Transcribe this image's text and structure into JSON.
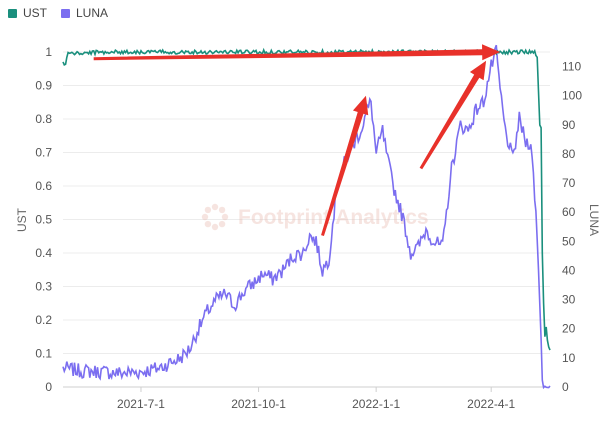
{
  "chart_data": {
    "type": "line",
    "legend": [
      {
        "name": "UST",
        "color": "#1a8f7d"
      },
      {
        "name": "LUNA",
        "color": "#7b6ef0"
      }
    ],
    "ylabel_left": "UST",
    "ylabel_right": "LUNA",
    "watermark": "Footprint Analytics",
    "x_ticks": [
      "2021-7-1",
      "2021-10-1",
      "2022-1-1",
      "2022-4-1"
    ],
    "x_range": [
      "2021-05-01",
      "2022-05-17"
    ],
    "y_left_ticks": [
      0,
      0.1,
      0.2,
      0.3,
      0.4,
      0.5,
      0.6,
      0.7,
      0.8,
      0.9,
      1
    ],
    "y_left_range": [
      0,
      1
    ],
    "y_right_ticks": [
      0,
      10,
      20,
      30,
      40,
      50,
      60,
      70,
      80,
      90,
      100,
      110
    ],
    "y_right_range": [
      0,
      115
    ],
    "grid": "horizontal",
    "legend_placement": "top-left",
    "series": [
      {
        "name": "UST",
        "axis": "left",
        "color": "#1a8f7d",
        "points": [
          [
            "2021-05-01",
            0.97
          ],
          [
            "2021-05-03",
            0.96
          ],
          [
            "2021-05-05",
            1.0
          ],
          [
            "2021-05-10",
            0.995
          ],
          [
            "2021-06-01",
            1.0
          ],
          [
            "2021-07-01",
            1.0
          ],
          [
            "2021-08-01",
            1.0
          ],
          [
            "2021-09-01",
            1.0
          ],
          [
            "2021-10-01",
            1.0
          ],
          [
            "2021-11-01",
            1.0
          ],
          [
            "2021-12-01",
            1.0
          ],
          [
            "2022-01-01",
            1.0
          ],
          [
            "2022-02-01",
            1.0
          ],
          [
            "2022-03-01",
            1.0
          ],
          [
            "2022-04-01",
            1.0
          ],
          [
            "2022-05-05",
            1.0
          ],
          [
            "2022-05-07",
            0.99
          ],
          [
            "2022-05-09",
            0.78
          ],
          [
            "2022-05-10",
            0.77
          ],
          [
            "2022-05-11",
            0.4
          ],
          [
            "2022-05-12",
            0.25
          ],
          [
            "2022-05-13",
            0.15
          ],
          [
            "2022-05-14",
            0.18
          ],
          [
            "2022-05-15",
            0.14
          ],
          [
            "2022-05-16",
            0.12
          ],
          [
            "2022-05-17",
            0.11
          ]
        ]
      },
      {
        "name": "LUNA",
        "axis": "right",
        "color": "#7b6ef0",
        "points": [
          [
            "2021-05-01",
            6.5
          ],
          [
            "2021-05-15",
            5.5
          ],
          [
            "2021-06-01",
            5.2
          ],
          [
            "2021-06-15",
            4.8
          ],
          [
            "2021-07-01",
            5.2
          ],
          [
            "2021-07-15",
            6.5
          ],
          [
            "2021-08-01",
            10
          ],
          [
            "2021-08-08",
            13
          ],
          [
            "2021-08-15",
            20
          ],
          [
            "2021-08-22",
            26
          ],
          [
            "2021-08-29",
            30
          ],
          [
            "2021-09-05",
            32
          ],
          [
            "2021-09-12",
            28
          ],
          [
            "2021-09-20",
            33
          ],
          [
            "2021-09-28",
            36
          ],
          [
            "2021-10-05",
            39
          ],
          [
            "2021-10-12",
            37
          ],
          [
            "2021-10-20",
            40
          ],
          [
            "2021-10-28",
            45
          ],
          [
            "2021-11-05",
            46
          ],
          [
            "2021-11-10",
            52
          ],
          [
            "2021-11-15",
            50
          ],
          [
            "2021-11-20",
            40
          ],
          [
            "2021-11-25",
            44
          ],
          [
            "2021-12-01",
            68
          ],
          [
            "2021-12-08",
            78
          ],
          [
            "2021-12-15",
            84
          ],
          [
            "2021-12-20",
            88
          ],
          [
            "2021-12-25",
            95
          ],
          [
            "2021-12-28",
            98
          ],
          [
            "2022-01-01",
            80
          ],
          [
            "2022-01-06",
            88
          ],
          [
            "2022-01-10",
            78
          ],
          [
            "2022-01-15",
            68
          ],
          [
            "2022-01-22",
            58
          ],
          [
            "2022-01-28",
            46
          ],
          [
            "2022-02-03",
            48
          ],
          [
            "2022-02-09",
            54
          ],
          [
            "2022-02-15",
            50
          ],
          [
            "2022-02-22",
            48
          ],
          [
            "2022-03-01",
            75
          ],
          [
            "2022-03-08",
            90
          ],
          [
            "2022-03-14",
            88
          ],
          [
            "2022-03-20",
            95
          ],
          [
            "2022-03-26",
            98
          ],
          [
            "2022-04-01",
            110
          ],
          [
            "2022-04-05",
            115
          ],
          [
            "2022-04-08",
            102
          ],
          [
            "2022-04-12",
            88
          ],
          [
            "2022-04-18",
            78
          ],
          [
            "2022-04-23",
            92
          ],
          [
            "2022-04-28",
            84
          ],
          [
            "2022-05-02",
            84
          ],
          [
            "2022-05-06",
            60
          ],
          [
            "2022-05-09",
            30
          ],
          [
            "2022-05-11",
            3
          ],
          [
            "2022-05-13",
            0.1
          ],
          [
            "2022-05-17",
            0.1
          ]
        ]
      }
    ],
    "annotations": [
      {
        "kind": "arrow",
        "color": "#e8312a",
        "from": [
          "2021-05-25",
          0.98
        ],
        "to": [
          "2022-04-08",
          1.0
        ],
        "axis": "left"
      },
      {
        "kind": "arrow",
        "color": "#e8312a",
        "from": [
          "2021-11-20",
          52
        ],
        "to": [
          "2021-12-24",
          100
        ],
        "axis": "right"
      },
      {
        "kind": "arrow",
        "color": "#e8312a",
        "from": [
          "2022-02-05",
          75
        ],
        "to": [
          "2022-03-28",
          112
        ],
        "axis": "right"
      }
    ]
  }
}
